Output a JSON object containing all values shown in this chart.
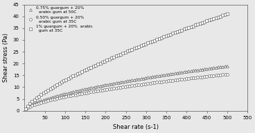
{
  "xlabel": "Shear rate (s-1)",
  "ylabel": "Shear stress (Pa)",
  "xlim": [
    0,
    550
  ],
  "ylim": [
    0,
    45
  ],
  "xticks": [
    50,
    100,
    150,
    200,
    250,
    300,
    350,
    400,
    450,
    500,
    550
  ],
  "yticks": [
    0,
    5,
    10,
    15,
    20,
    25,
    30,
    35,
    40,
    45
  ],
  "bg_color": "#e8e8e8",
  "series": [
    {
      "label": "0.75% guargum + 20%\n  arabic gum at 50C",
      "marker": "^",
      "k": 0.456,
      "n": 0.6
    },
    {
      "label": "0.50% guargum + 20%\n  arabic gum at 35C",
      "marker": "o",
      "k": 0.373,
      "n": 0.6
    },
    {
      "label": "1% guargum + 20%  arabic\n  gum at 35C",
      "marker": "s",
      "k": 0.468,
      "n": 0.72
    }
  ],
  "line_color": "#888888",
  "marker_edge_color": "#666666",
  "marker_size": 2.8,
  "n_markers": 90,
  "line_width": 0.5
}
